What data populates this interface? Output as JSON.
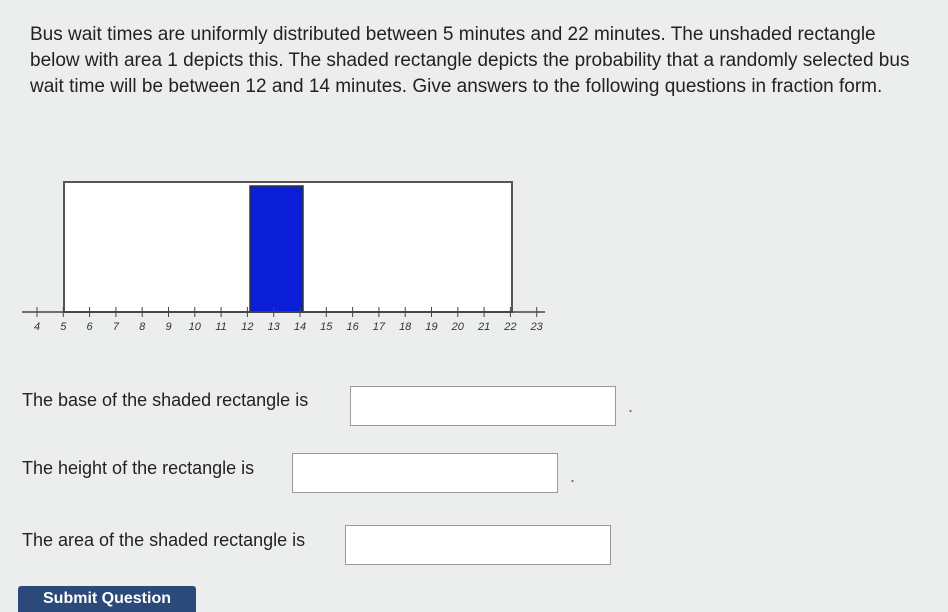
{
  "question": "Bus wait times are uniformly distributed between 5 minutes and 22 minutes. The unshaded rectangle below with area 1 depicts this. The shaded rectangle depicts the probability that a randomly selected bus wait time will be between 12 and 14 minutes. Give answers to the following questions in fraction form.",
  "diagram": {
    "ticks": [
      4,
      5,
      6,
      7,
      8,
      9,
      10,
      11,
      12,
      13,
      14,
      15,
      16,
      17,
      18,
      19,
      20,
      21,
      22,
      23
    ]
  },
  "prompts": [
    {
      "text": "The base of the shaded rectangle is",
      "suffix": "."
    },
    {
      "text": "The height of the rectangle is",
      "suffix": "."
    },
    {
      "text": "The area of the shaded rectangle is"
    }
  ],
  "button": "Submit Question"
}
